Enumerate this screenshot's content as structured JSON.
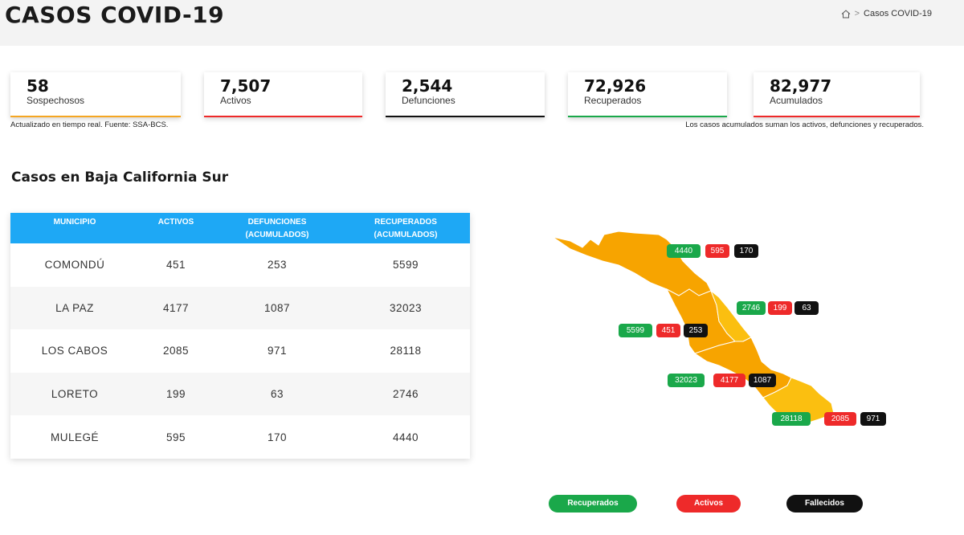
{
  "header": {
    "title": "CASOS COVID-19",
    "breadcrumb_current": "Casos COVID-19",
    "breadcrumb_sep": ">"
  },
  "stats": [
    {
      "value": "58",
      "label": "Sospechosos",
      "color": "#f5a623"
    },
    {
      "value": "7,507",
      "label": "Activos",
      "color": "#ee2a2a"
    },
    {
      "value": "2,544",
      "label": "Defunciones",
      "color": "#111111"
    },
    {
      "value": "72,926",
      "label": "Recuperados",
      "color": "#1aa84a"
    },
    {
      "value": "82,977",
      "label": "Acumulados",
      "color": "#ee2a2a"
    }
  ],
  "notes": {
    "left": "Actualizado en tiempo real. Fuente: SSA-BCS.",
    "right": "Los casos acumulados suman los activos, defunciones y recuperados."
  },
  "section_title": "Casos en Baja California Sur",
  "table": {
    "headers": [
      {
        "line1": "MUNICIPIO",
        "line2": ""
      },
      {
        "line1": "ACTIVOS",
        "line2": ""
      },
      {
        "line1": "DEFUNCIONES",
        "line2": "(ACUMULADOS)"
      },
      {
        "line1": "RECUPERADOS",
        "line2": "(ACUMULADOS)"
      }
    ],
    "rows": [
      {
        "municipio": "COMONDÚ",
        "activos": "451",
        "defunciones": "253",
        "recuperados": "5599"
      },
      {
        "municipio": "LA PAZ",
        "activos": "4177",
        "defunciones": "1087",
        "recuperados": "32023"
      },
      {
        "municipio": "LOS CABOS",
        "activos": "2085",
        "defunciones": "971",
        "recuperados": "28118"
      },
      {
        "municipio": "LORETO",
        "activos": "199",
        "defunciones": "63",
        "recuperados": "2746"
      },
      {
        "municipio": "MULEGÉ",
        "activos": "595",
        "defunciones": "170",
        "recuperados": "4440"
      }
    ]
  },
  "map_badges": {
    "mulege": {
      "rec": "4440",
      "act": "595",
      "def": "170"
    },
    "loreto": {
      "rec": "2746",
      "act": "199",
      "def": "63"
    },
    "comondu": {
      "rec": "5599",
      "act": "451",
      "def": "253"
    },
    "lapaz": {
      "rec": "32023",
      "act": "4177",
      "def": "1087"
    },
    "loscabos": {
      "rec": "28118",
      "act": "2085",
      "def": "971"
    }
  },
  "legend": {
    "recuperados": "Recuperados",
    "activos": "Activos",
    "fallecidos": "Fallecidos"
  },
  "colors": {
    "header_blue": "#1ea8f5",
    "recovered_green": "#1aa84a",
    "active_red": "#ee2a2a",
    "deaths_black": "#111111",
    "map_orange": "#f7a400",
    "map_yellow": "#fbbf10"
  }
}
